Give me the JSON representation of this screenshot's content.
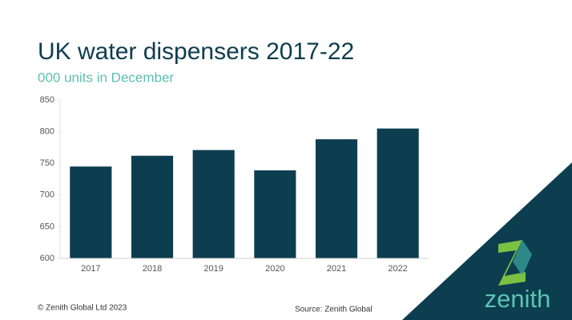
{
  "chart_data": {
    "type": "bar",
    "title": "UK water dispensers 2017-22",
    "subtitle": "000 units in December",
    "categories": [
      "2017",
      "2018",
      "2019",
      "2020",
      "2021",
      "2022"
    ],
    "values": [
      745,
      762,
      771,
      739,
      788,
      805
    ],
    "color": "#0c3e4f",
    "ylim": [
      600,
      850
    ],
    "yticks": [
      600,
      650,
      700,
      750,
      800,
      850
    ],
    "grid": false,
    "source": "Source: Zenith Global"
  },
  "footer": {
    "copyright": "© Zenith Global Ltd 2023"
  },
  "logo": {
    "text": "zenith"
  }
}
